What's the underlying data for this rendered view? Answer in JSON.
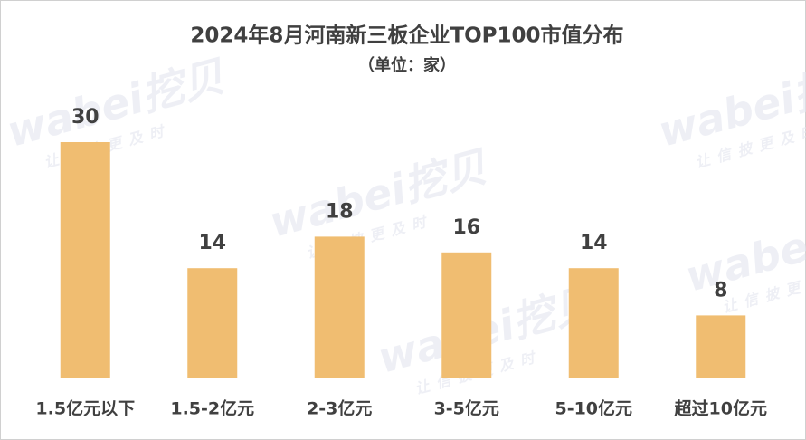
{
  "chart_data": {
    "type": "bar",
    "title": "2024年8月河南新三板企业TOP100市值分布",
    "subtitle": "（单位：家）",
    "categories": [
      "1.5亿元以下",
      "1.5-2亿元",
      "2-3亿元",
      "3-5亿元",
      "5-10亿元",
      "超过10亿元"
    ],
    "values": [
      30,
      14,
      18,
      16,
      14,
      8
    ],
    "color": "#f0bd71",
    "watermark": {
      "logo": "wabei挖贝",
      "slogan": "让信披更及时"
    }
  }
}
